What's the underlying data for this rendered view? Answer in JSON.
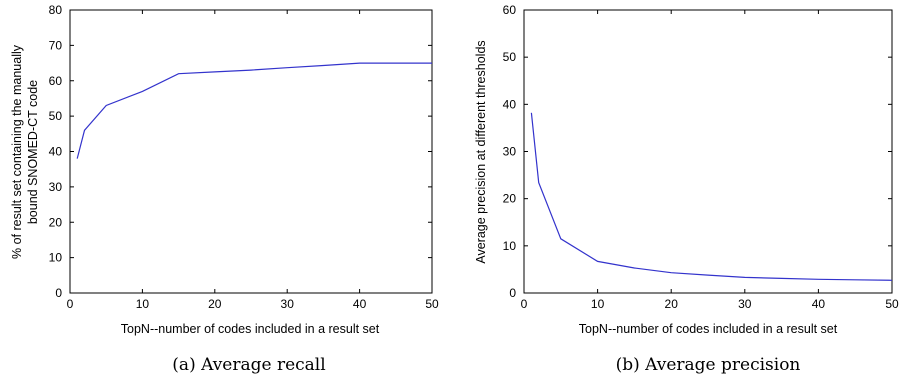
{
  "chart_data": [
    {
      "type": "line",
      "caption": "(a) Average recall",
      "xlabel": "TopN--number of codes included in a result set",
      "ylabel": [
        "% of result set containing the manually",
        "bound SNOMED-CT code"
      ],
      "xlim": [
        0,
        50
      ],
      "ylim": [
        0,
        80
      ],
      "xticks": [
        0,
        10,
        20,
        30,
        40,
        50
      ],
      "yticks": [
        0,
        10,
        20,
        30,
        40,
        50,
        60,
        70,
        80
      ],
      "grid": false,
      "color": "#3333cc",
      "series": [
        {
          "x": [
            1,
            2,
            5,
            10,
            15,
            20,
            25,
            30,
            35,
            40,
            45,
            50
          ],
          "y": [
            38,
            46,
            53,
            57,
            62,
            62.5,
            63,
            63.7,
            64.3,
            65,
            65,
            65
          ]
        }
      ]
    },
    {
      "type": "line",
      "caption": "(b) Average precision",
      "xlabel": "TopN--number of codes included in a result set",
      "ylabel": [
        "Average precision at different thresholds"
      ],
      "xlim": [
        0,
        50
      ],
      "ylim": [
        0,
        60
      ],
      "xticks": [
        0,
        10,
        20,
        30,
        40,
        50
      ],
      "yticks": [
        0,
        10,
        20,
        30,
        40,
        50,
        60
      ],
      "grid": false,
      "color": "#3333cc",
      "series": [
        {
          "x": [
            1,
            2,
            5,
            10,
            15,
            20,
            25,
            30,
            35,
            40,
            45,
            50
          ],
          "y": [
            38.2,
            23.4,
            11.5,
            6.7,
            5.3,
            4.3,
            3.8,
            3.3,
            3.1,
            2.9,
            2.8,
            2.7
          ]
        }
      ]
    }
  ]
}
